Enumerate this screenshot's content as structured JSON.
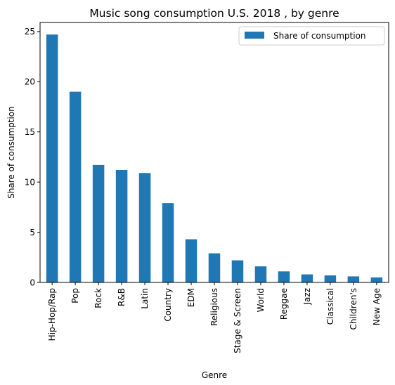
{
  "chart_data": {
    "type": "bar",
    "title": "Music song consumption U.S. 2018 , by genre",
    "xlabel": "Genre",
    "ylabel": "Share of consumption",
    "categories": [
      "Hip-Hop/Rap",
      "Pop",
      "Rock",
      "R&B",
      "Latin",
      "Country",
      "EDM",
      "Religious",
      "Stage & Screen",
      "World",
      "Reggae",
      "Jazz",
      "Classical",
      "Children's",
      "New Age"
    ],
    "series": [
      {
        "name": "Share of consumption",
        "values": [
          24.7,
          19.0,
          11.7,
          11.2,
          10.9,
          7.9,
          4.3,
          2.9,
          2.2,
          1.6,
          1.1,
          0.8,
          0.7,
          0.6,
          0.5
        ],
        "color": "#1f77b4"
      }
    ],
    "yticks": [
      "0",
      "5",
      "10",
      "15",
      "20",
      "25"
    ],
    "ylim": [
      0,
      25.9
    ],
    "grid": false,
    "legend_position": "top-right"
  }
}
